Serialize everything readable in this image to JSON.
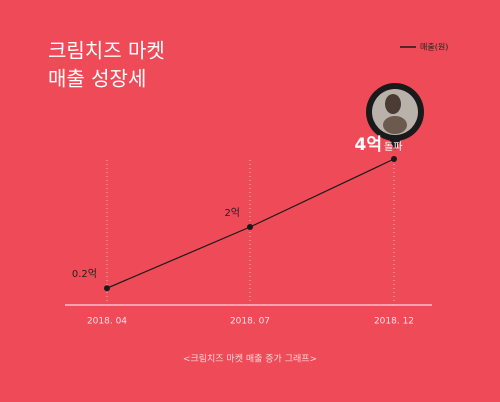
{
  "chart_data": {
    "type": "line",
    "title": [
      "크림치즈 마켓",
      "매출 성장세"
    ],
    "categories": [
      "2018. 04",
      "2018. 07",
      "2018. 12"
    ],
    "series": [
      {
        "name": "매출(원)",
        "color": "#1a1a1a",
        "values": [
          0.2,
          2,
          4
        ],
        "value_labels": [
          "0.2억",
          "2억",
          "4억"
        ]
      }
    ],
    "annotation": "돌파",
    "caption": "<크림치즈 마켓 매출 증가 그래프>"
  }
}
